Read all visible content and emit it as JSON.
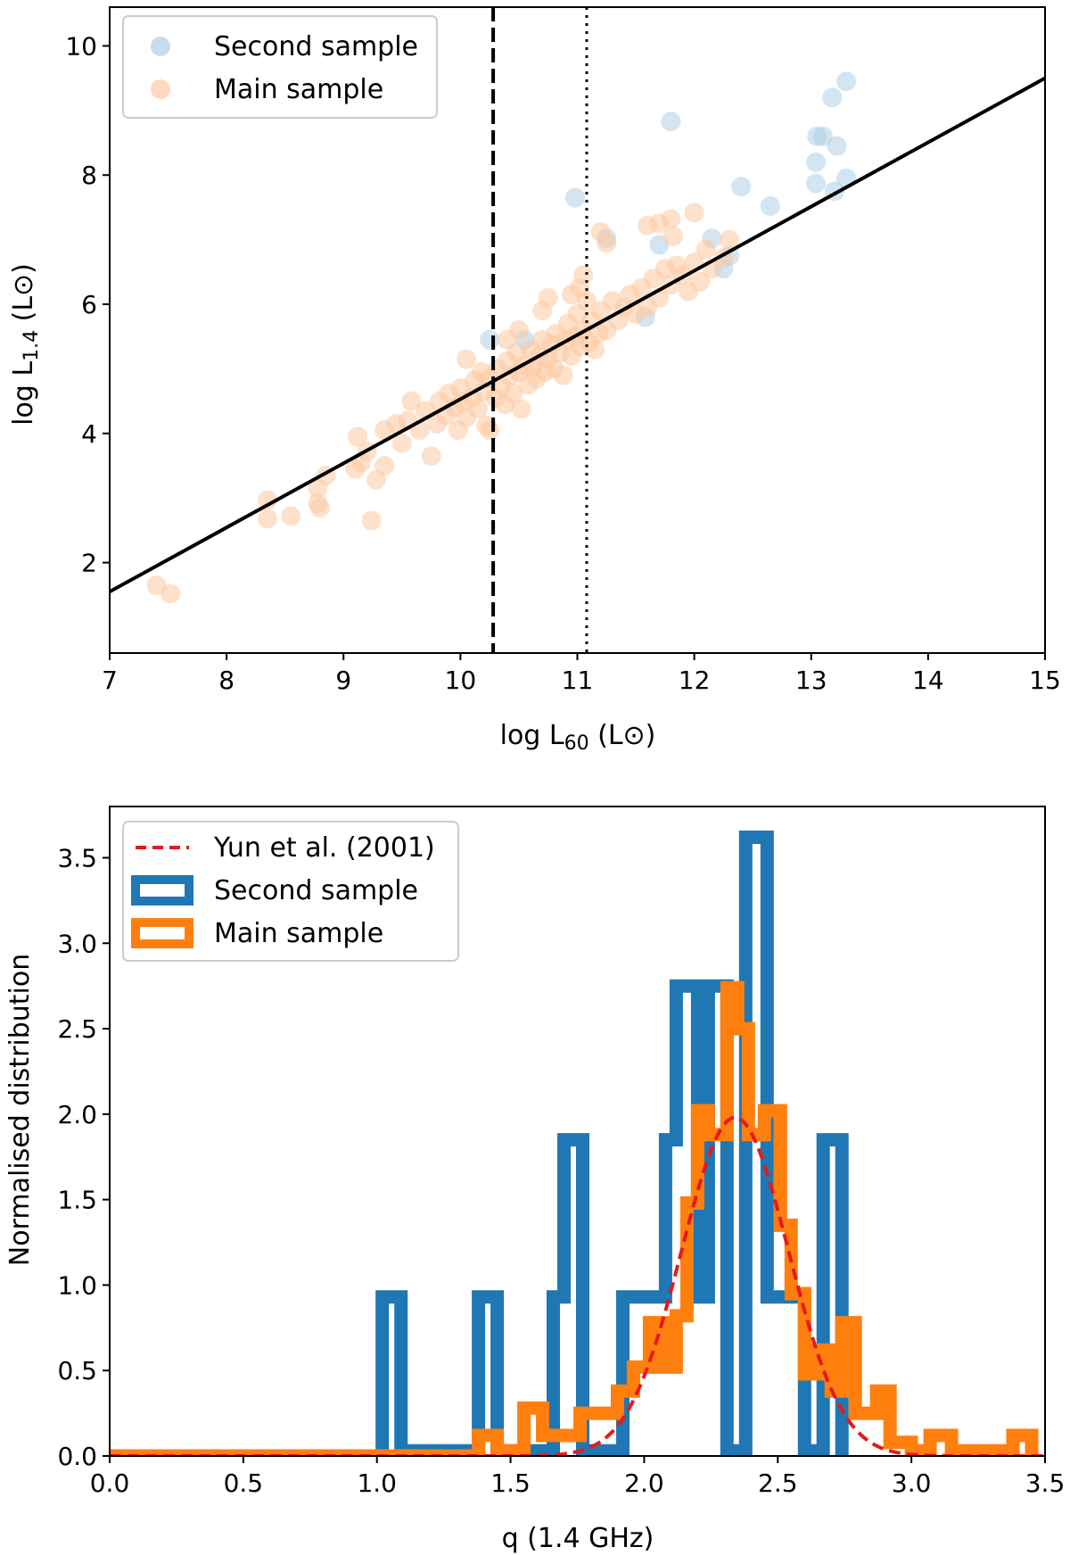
{
  "chart_data": [
    {
      "type": "scatter",
      "xlabel": "log L60 (L⊙)",
      "xlabel_main": "log L",
      "xlabel_sub": "60",
      "xlabel_unit": " (L⊙)",
      "ylabel": "log L1.4 (L⊙)",
      "ylabel_main": "log L",
      "ylabel_sub": "1.4",
      "ylabel_unit": " (L⊙)",
      "xlim": [
        7,
        15
      ],
      "ylim": [
        0.6,
        10.6
      ],
      "xticks": [
        7,
        8,
        9,
        10,
        11,
        12,
        13,
        14,
        15
      ],
      "yticks": [
        2,
        4,
        6,
        8,
        10
      ],
      "legend_position": "top-left",
      "fit_line": {
        "x": [
          7,
          15
        ],
        "y": [
          1.55,
          9.5
        ],
        "color": "#000000"
      },
      "vlines": [
        {
          "x": 10.28,
          "style": "dashed"
        },
        {
          "x": 11.08,
          "style": "dotted"
        }
      ],
      "series": [
        {
          "name": "Second sample",
          "color": "#aecfe6",
          "points": [
            [
              13.3,
              9.45
            ],
            [
              13.18,
              9.2
            ],
            [
              13.05,
              8.6
            ],
            [
              13.1,
              8.6
            ],
            [
              13.22,
              8.45
            ],
            [
              13.04,
              8.2
            ],
            [
              13.04,
              7.87
            ],
            [
              13.3,
              7.95
            ],
            [
              13.2,
              7.75
            ],
            [
              11.8,
              8.83
            ],
            [
              10.98,
              7.65
            ],
            [
              12.4,
              7.82
            ],
            [
              12.65,
              7.52
            ],
            [
              11.25,
              7.02
            ],
            [
              12.15,
              7.02
            ],
            [
              11.7,
              6.92
            ],
            [
              12.3,
              6.75
            ],
            [
              12.25,
              6.55
            ],
            [
              11.58,
              5.8
            ],
            [
              10.25,
              5.45
            ],
            [
              10.55,
              5.45
            ]
          ]
        },
        {
          "name": "Main sample",
          "color": "#fdc9a1",
          "points": [
            [
              7.4,
              1.65
            ],
            [
              7.52,
              1.52
            ],
            [
              8.35,
              2.97
            ],
            [
              8.35,
              2.68
            ],
            [
              8.55,
              2.72
            ],
            [
              8.78,
              2.92
            ],
            [
              8.8,
              2.85
            ],
            [
              8.85,
              3.35
            ],
            [
              8.78,
              3.15
            ],
            [
              9.1,
              3.45
            ],
            [
              9.15,
              3.55
            ],
            [
              9.2,
              3.72
            ],
            [
              9.28,
              3.28
            ],
            [
              9.35,
              3.5
            ],
            [
              9.24,
              2.65
            ],
            [
              9.12,
              3.95
            ],
            [
              9.35,
              4.05
            ],
            [
              9.45,
              4.15
            ],
            [
              9.5,
              3.85
            ],
            [
              9.55,
              4.2
            ],
            [
              9.65,
              4.05
            ],
            [
              9.7,
              4.35
            ],
            [
              9.75,
              3.65
            ],
            [
              9.58,
              4.5
            ],
            [
              9.8,
              4.15
            ],
            [
              9.82,
              4.5
            ],
            [
              9.88,
              4.28
            ],
            [
              9.9,
              4.62
            ],
            [
              9.95,
              4.4
            ],
            [
              9.98,
              4.05
            ],
            [
              10.0,
              4.7
            ],
            [
              10.02,
              4.48
            ],
            [
              10.05,
              4.25
            ],
            [
              10.05,
              5.15
            ],
            [
              10.1,
              4.55
            ],
            [
              10.12,
              4.82
            ],
            [
              10.15,
              4.38
            ],
            [
              10.18,
              4.95
            ],
            [
              10.2,
              4.65
            ],
            [
              10.22,
              4.12
            ],
            [
              10.25,
              4.85
            ],
            [
              10.3,
              4.55
            ],
            [
              10.32,
              5.0
            ],
            [
              10.35,
              4.72
            ],
            [
              10.38,
              4.45
            ],
            [
              10.4,
              5.12
            ],
            [
              10.42,
              4.88
            ],
            [
              10.45,
              4.62
            ],
            [
              10.48,
              5.25
            ],
            [
              10.5,
              4.95
            ],
            [
              10.52,
              4.38
            ],
            [
              10.55,
              5.05
            ],
            [
              10.58,
              4.75
            ],
            [
              10.6,
              5.3
            ],
            [
              10.62,
              5.02
            ],
            [
              10.65,
              4.85
            ],
            [
              10.68,
              5.2
            ],
            [
              10.7,
              5.45
            ],
            [
              10.72,
              4.95
            ],
            [
              10.75,
              5.15
            ],
            [
              10.78,
              5.38
            ],
            [
              10.8,
              5.0
            ],
            [
              10.82,
              5.55
            ],
            [
              10.85,
              5.25
            ],
            [
              10.88,
              4.9
            ],
            [
              10.9,
              5.45
            ],
            [
              10.92,
              5.7
            ],
            [
              10.95,
              5.2
            ],
            [
              10.98,
              5.5
            ],
            [
              11.0,
              5.85
            ],
            [
              11.02,
              5.35
            ],
            [
              11.05,
              5.6
            ],
            [
              11.08,
              6.05
            ],
            [
              11.1,
              5.4
            ],
            [
              11.12,
              5.75
            ],
            [
              11.15,
              5.3
            ],
            [
              11.18,
              5.55
            ],
            [
              11.2,
              5.9
            ],
            [
              11.25,
              5.6
            ],
            [
              11.3,
              6.05
            ],
            [
              11.35,
              5.75
            ],
            [
              11.4,
              5.95
            ],
            [
              11.45,
              6.15
            ],
            [
              11.5,
              5.85
            ],
            [
              11.55,
              6.25
            ],
            [
              11.6,
              5.95
            ],
            [
              11.65,
              6.4
            ],
            [
              11.7,
              6.1
            ],
            [
              11.75,
              6.55
            ],
            [
              11.8,
              6.3
            ],
            [
              11.85,
              6.6
            ],
            [
              11.9,
              6.45
            ],
            [
              11.95,
              6.2
            ],
            [
              12.0,
              6.65
            ],
            [
              12.05,
              6.35
            ],
            [
              12.1,
              6.85
            ],
            [
              12.15,
              6.55
            ],
            [
              12.25,
              6.72
            ],
            [
              12.3,
              7.0
            ],
            [
              11.7,
              7.25
            ],
            [
              11.82,
              7.05
            ],
            [
              11.6,
              7.22
            ],
            [
              11.8,
              7.32
            ],
            [
              12.0,
              7.42
            ],
            [
              11.2,
              7.12
            ],
            [
              11.25,
              6.95
            ],
            [
              11.05,
              6.45
            ],
            [
              11.02,
              6.25
            ],
            [
              10.95,
              6.15
            ],
            [
              10.7,
              5.9
            ],
            [
              10.75,
              6.1
            ],
            [
              10.25,
              4.05
            ],
            [
              10.5,
              5.6
            ],
            [
              10.4,
              5.45
            ]
          ]
        }
      ]
    },
    {
      "type": "histogram",
      "xlabel": "q (1.4 GHz)",
      "ylabel": "Normalised distribution",
      "xlim": [
        0,
        3.5
      ],
      "ylim": [
        0,
        3.8
      ],
      "xticks": [
        0.0,
        0.5,
        1.0,
        1.5,
        2.0,
        2.5,
        3.0,
        3.5
      ],
      "yticks": [
        0.0,
        0.5,
        1.0,
        1.5,
        2.0,
        2.5,
        3.0,
        3.5
      ],
      "legend_position": "top-left",
      "series": [
        {
          "name": "Second sample",
          "color": "#1f77b4",
          "style": "step",
          "steps": [
            [
              0.0,
              0.0
            ],
            [
              1.02,
              0.0
            ],
            [
              1.02,
              0.93
            ],
            [
              1.09,
              0.93
            ],
            [
              1.09,
              0.03
            ],
            [
              1.38,
              0.03
            ],
            [
              1.38,
              0.93
            ],
            [
              1.45,
              0.93
            ],
            [
              1.45,
              0.03
            ],
            [
              1.66,
              0.03
            ],
            [
              1.66,
              0.93
            ],
            [
              1.7,
              0.93
            ],
            [
              1.7,
              1.85
            ],
            [
              1.77,
              1.85
            ],
            [
              1.77,
              0.03
            ],
            [
              1.92,
              0.03
            ],
            [
              1.92,
              0.93
            ],
            [
              2.08,
              0.93
            ],
            [
              2.08,
              1.85
            ],
            [
              2.12,
              1.85
            ],
            [
              2.12,
              2.75
            ],
            [
              2.2,
              2.75
            ],
            [
              2.2,
              0.93
            ],
            [
              2.24,
              0.93
            ],
            [
              2.24,
              2.75
            ],
            [
              2.31,
              2.75
            ],
            [
              2.31,
              0.03
            ],
            [
              2.38,
              0.03
            ],
            [
              2.38,
              3.62
            ],
            [
              2.46,
              3.62
            ],
            [
              2.46,
              0.93
            ],
            [
              2.6,
              0.93
            ],
            [
              2.6,
              0.03
            ],
            [
              2.67,
              0.03
            ],
            [
              2.67,
              1.85
            ],
            [
              2.74,
              1.85
            ],
            [
              2.74,
              0.0
            ]
          ]
        },
        {
          "name": "Main sample",
          "color": "#ff7f0e",
          "style": "step",
          "steps": [
            [
              0.0,
              0.0
            ],
            [
              1.38,
              0.0
            ],
            [
              1.38,
              0.12
            ],
            [
              1.45,
              0.12
            ],
            [
              1.45,
              0.03
            ],
            [
              1.55,
              0.03
            ],
            [
              1.55,
              0.28
            ],
            [
              1.62,
              0.28
            ],
            [
              1.62,
              0.12
            ],
            [
              1.76,
              0.12
            ],
            [
              1.76,
              0.25
            ],
            [
              1.9,
              0.25
            ],
            [
              1.9,
              0.38
            ],
            [
              1.96,
              0.38
            ],
            [
              1.96,
              0.52
            ],
            [
              2.02,
              0.52
            ],
            [
              2.02,
              0.78
            ],
            [
              2.07,
              0.78
            ],
            [
              2.07,
              0.52
            ],
            [
              2.12,
              0.52
            ],
            [
              2.12,
              0.82
            ],
            [
              2.16,
              0.82
            ],
            [
              2.16,
              1.48
            ],
            [
              2.2,
              1.48
            ],
            [
              2.2,
              2.02
            ],
            [
              2.24,
              2.02
            ],
            [
              2.24,
              1.88
            ],
            [
              2.31,
              1.88
            ],
            [
              2.31,
              2.74
            ],
            [
              2.35,
              2.74
            ],
            [
              2.35,
              2.5
            ],
            [
              2.39,
              2.5
            ],
            [
              2.39,
              1.88
            ],
            [
              2.45,
              1.88
            ],
            [
              2.45,
              2.02
            ],
            [
              2.51,
              2.02
            ],
            [
              2.51,
              1.35
            ],
            [
              2.55,
              1.35
            ],
            [
              2.55,
              0.95
            ],
            [
              2.6,
              0.95
            ],
            [
              2.6,
              0.48
            ],
            [
              2.65,
              0.48
            ],
            [
              2.65,
              0.62
            ],
            [
              2.7,
              0.62
            ],
            [
              2.7,
              0.38
            ],
            [
              2.74,
              0.38
            ],
            [
              2.74,
              0.78
            ],
            [
              2.79,
              0.78
            ],
            [
              2.79,
              0.25
            ],
            [
              2.87,
              0.25
            ],
            [
              2.87,
              0.38
            ],
            [
              2.92,
              0.38
            ],
            [
              2.92,
              0.08
            ],
            [
              3.0,
              0.08
            ],
            [
              3.0,
              0.03
            ],
            [
              3.07,
              0.03
            ],
            [
              3.07,
              0.12
            ],
            [
              3.15,
              0.12
            ],
            [
              3.15,
              0.03
            ],
            [
              3.38,
              0.03
            ],
            [
              3.38,
              0.12
            ],
            [
              3.45,
              0.12
            ],
            [
              3.45,
              0.0
            ]
          ]
        },
        {
          "name": "Yun et al. (2001)",
          "color": "#e41a1c",
          "style": "dashed",
          "gaussian": {
            "mean": 2.34,
            "sigma": 0.2,
            "peak": 1.98
          }
        }
      ]
    }
  ]
}
